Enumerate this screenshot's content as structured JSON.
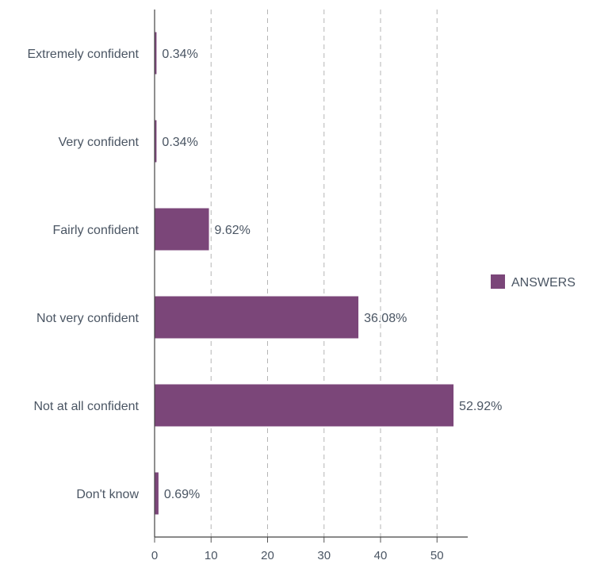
{
  "chart_data": {
    "type": "bar",
    "orientation": "horizontal",
    "categories": [
      "Extremely confident",
      "Very confident",
      "Fairly confident",
      "Not very confident",
      "Not at all confident",
      "Don't know"
    ],
    "series": [
      {
        "name": "ANSWERS",
        "values": [
          0.34,
          0.34,
          9.62,
          36.08,
          52.92,
          0.69
        ],
        "value_labels": [
          "0.34%",
          "0.34%",
          "9.62%",
          "36.08%",
          "52.92%",
          "0.69%"
        ],
        "color": "#7b4679"
      }
    ],
    "xlim": [
      0,
      55
    ],
    "xticks": [
      0,
      10,
      20,
      30,
      40,
      50
    ],
    "grid": "vertical dashed",
    "legend_position": "right"
  }
}
